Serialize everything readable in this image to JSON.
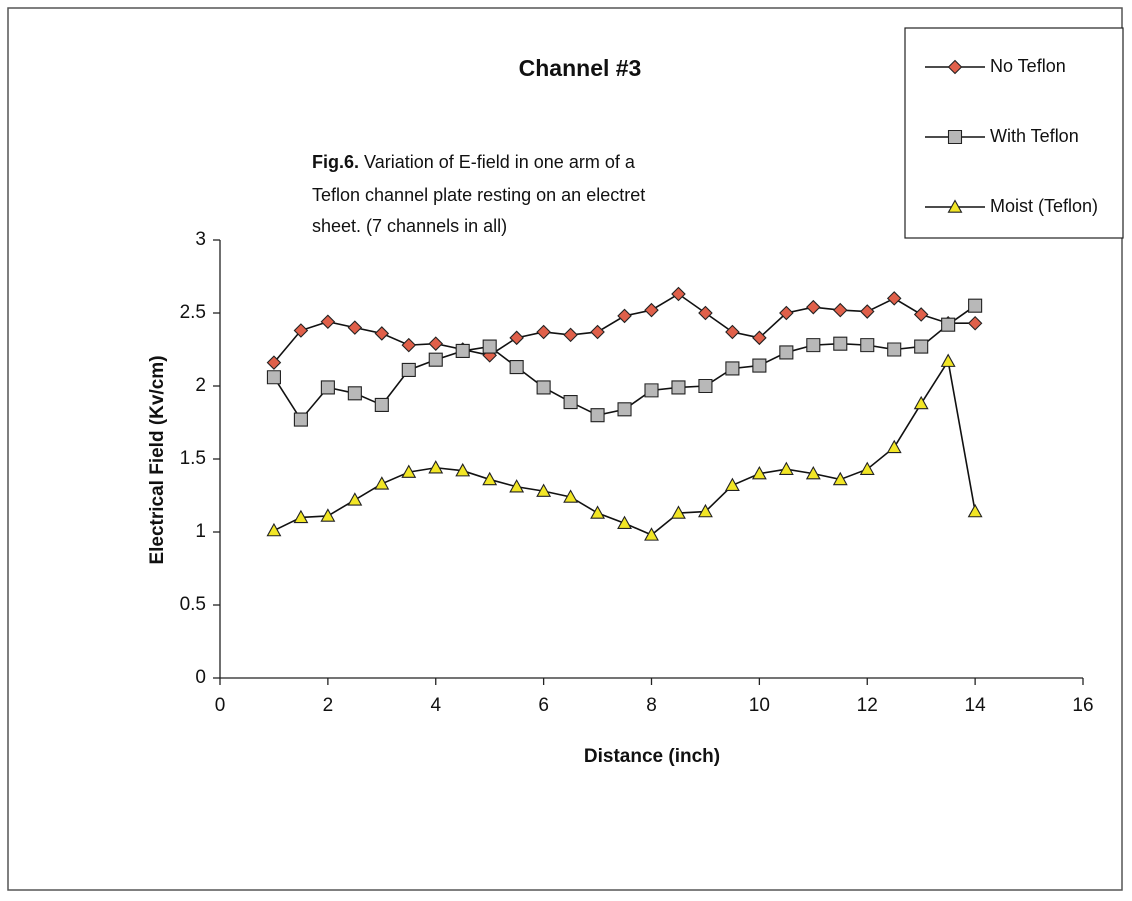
{
  "chart_data": {
    "type": "line",
    "title": "Channel #3",
    "annotation": {
      "label": "Fig.6.",
      "lines": [
        "Variation of E-field in one arm of a",
        "Teflon channel plate resting on an electret",
        "sheet. (7 channels in all)"
      ]
    },
    "x_label": "Distance (inch)",
    "y_label": "Electrical Field (Kv/cm)",
    "xlim": [
      0,
      16
    ],
    "xticks": [
      0,
      2,
      4,
      6,
      8,
      10,
      12,
      14,
      16
    ],
    "ylim": [
      0,
      3
    ],
    "yticks": [
      0,
      0.5,
      1,
      1.5,
      2,
      2.5,
      3
    ],
    "x": [
      1,
      1.5,
      2,
      2.5,
      3,
      3.5,
      4,
      4.5,
      5,
      5.5,
      6,
      6.5,
      7,
      7.5,
      8,
      8.5,
      9,
      9.5,
      10,
      10.5,
      11,
      11.5,
      12,
      12.5,
      13,
      13.5,
      14
    ],
    "legend": "upper right",
    "series": [
      {
        "name": "No Teflon",
        "color": "#e0604a",
        "marker": "diamond",
        "values": [
          2.16,
          2.38,
          2.44,
          2.4,
          2.36,
          2.28,
          2.29,
          2.25,
          2.21,
          2.33,
          2.37,
          2.35,
          2.37,
          2.48,
          2.52,
          2.63,
          2.5,
          2.37,
          2.33,
          2.5,
          2.54,
          2.52,
          2.51,
          2.6,
          2.49,
          2.43,
          2.43
        ]
      },
      {
        "name": "With Teflon",
        "color": "#b8b8b8",
        "marker": "square",
        "values": [
          2.06,
          1.77,
          1.99,
          1.95,
          1.87,
          2.11,
          2.18,
          2.24,
          2.27,
          2.13,
          1.99,
          1.89,
          1.8,
          1.84,
          1.97,
          1.99,
          2.0,
          2.12,
          2.14,
          2.23,
          2.28,
          2.29,
          2.28,
          2.25,
          2.27,
          2.42,
          2.55
        ]
      },
      {
        "name": "Moist (Teflon)",
        "color": "#f2e626",
        "marker": "triangle",
        "values": [
          1.01,
          1.1,
          1.11,
          1.22,
          1.33,
          1.41,
          1.44,
          1.42,
          1.36,
          1.31,
          1.28,
          1.24,
          1.13,
          1.06,
          0.98,
          1.13,
          1.14,
          1.32,
          1.4,
          1.43,
          1.4,
          1.36,
          1.43,
          1.58,
          1.88,
          2.17,
          1.14
        ]
      }
    ]
  }
}
